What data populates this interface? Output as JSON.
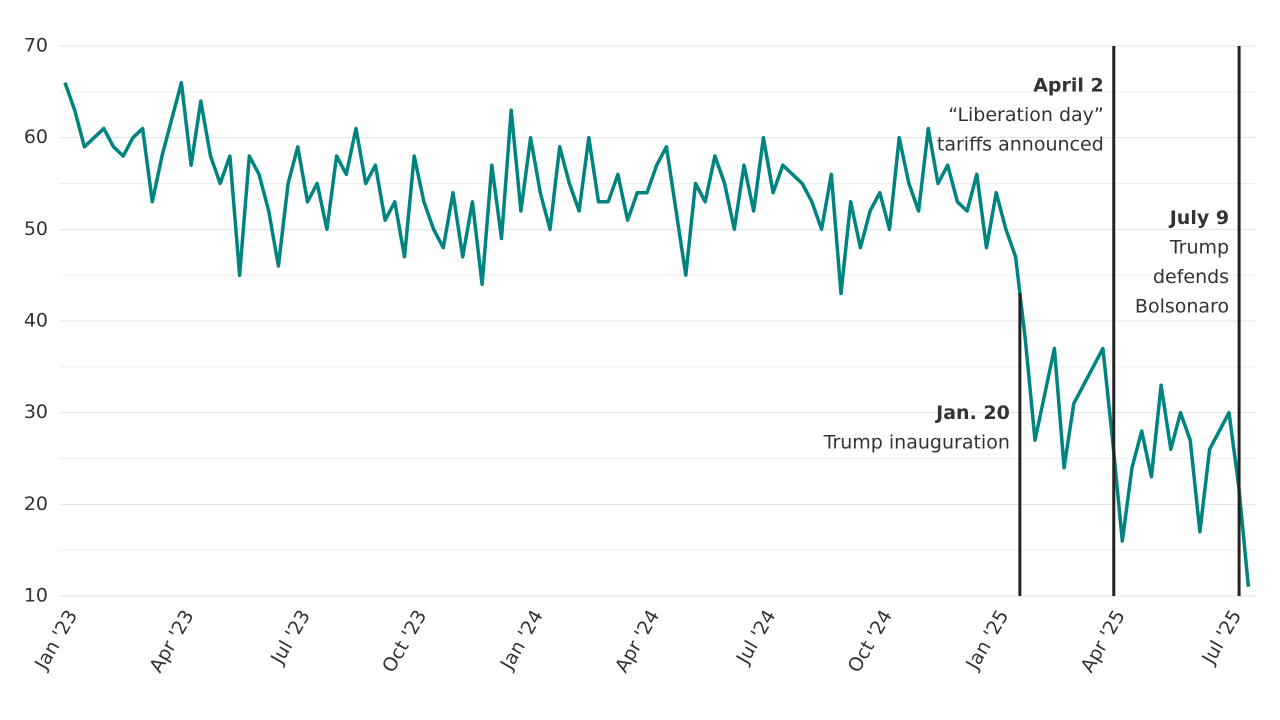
{
  "chart_data": {
    "type": "line",
    "xlim": [
      0,
      30.6
    ],
    "ylim": [
      10,
      70
    ],
    "yticks": [
      10,
      20,
      30,
      40,
      50,
      60,
      70
    ],
    "y_minor_ticks": [
      15,
      25,
      35,
      45,
      55,
      65
    ],
    "grid": true,
    "xticks": [
      {
        "value": 0,
        "label": "Jan '23"
      },
      {
        "value": 3,
        "label": "Apr '23"
      },
      {
        "value": 6,
        "label": "Jul '23"
      },
      {
        "value": 9,
        "label": "Oct '23"
      },
      {
        "value": 12,
        "label": "Jan '24"
      },
      {
        "value": 15,
        "label": "Apr '24"
      },
      {
        "value": 18,
        "label": "Jul '24"
      },
      {
        "value": 21,
        "label": "Oct '24"
      },
      {
        "value": 24,
        "label": "Jan '25"
      },
      {
        "value": 27,
        "label": "Apr '25"
      },
      {
        "value": 30,
        "label": "Jul '25"
      }
    ],
    "series": [
      {
        "color": "#00847f",
        "x": [
          0,
          0.25,
          0.5,
          0.75,
          1,
          1.25,
          1.5,
          1.75,
          2,
          2.25,
          2.5,
          2.75,
          3,
          3.25,
          3.5,
          3.75,
          4,
          4.25,
          4.5,
          4.75,
          5,
          5.25,
          5.5,
          5.75,
          6,
          6.25,
          6.5,
          6.75,
          7,
          7.25,
          7.5,
          7.75,
          8,
          8.25,
          8.5,
          8.75,
          9,
          9.25,
          9.5,
          9.75,
          10,
          10.25,
          10.5,
          10.75,
          11,
          11.25,
          11.5,
          11.75,
          12,
          12.25,
          12.5,
          12.75,
          13,
          13.25,
          13.5,
          13.75,
          14,
          14.25,
          14.5,
          14.75,
          15,
          15.25,
          15.5,
          15.75,
          16,
          16.25,
          16.5,
          16.75,
          17,
          17.25,
          17.5,
          17.75,
          18,
          18.25,
          18.5,
          18.75,
          19,
          19.25,
          19.5,
          19.75,
          20,
          20.25,
          20.5,
          20.75,
          21,
          21.25,
          21.5,
          21.75,
          22,
          22.25,
          22.5,
          22.75,
          23,
          23.25,
          23.5,
          23.75,
          24,
          24.25,
          24.5,
          24.75,
          25,
          25.25,
          25.5,
          25.75,
          26,
          26.25,
          26.5,
          26.75,
          27,
          27.25,
          27.5,
          27.75,
          28,
          28.25,
          28.5,
          28.75,
          29,
          29.25,
          29.5,
          29.75,
          30,
          30.25,
          30.5
        ],
        "values": [
          66,
          63,
          59,
          60,
          61,
          59,
          58,
          60,
          61,
          53,
          58,
          62,
          66,
          57,
          64,
          58,
          55,
          58,
          45,
          58,
          56,
          52,
          46,
          55,
          59,
          53,
          55,
          50,
          58,
          56,
          61,
          55,
          57,
          51,
          53,
          47,
          58,
          53,
          50,
          48,
          54,
          47,
          53,
          44,
          57,
          49,
          63,
          52,
          60,
          54,
          50,
          59,
          55,
          52,
          60,
          53,
          53,
          56,
          51,
          54,
          54,
          57,
          59,
          52,
          45,
          55,
          53,
          58,
          55,
          50,
          57,
          52,
          60,
          54,
          57,
          56,
          55,
          53,
          50,
          56,
          43,
          53,
          48,
          52,
          54,
          50,
          60,
          55,
          52,
          61,
          55,
          57,
          53,
          52,
          56,
          48,
          54,
          50,
          47,
          38,
          27,
          32,
          37,
          24,
          31,
          33,
          35,
          37,
          27,
          16,
          24,
          28,
          23,
          33,
          26,
          30,
          27,
          17,
          26,
          28,
          30,
          22,
          11
        ]
      }
    ],
    "annotations": [
      {
        "x": 24.61,
        "label": "Jan. 20",
        "text": [
          "Trump inauguration"
        ]
      },
      {
        "x": 27.03,
        "label": "April 2",
        "text": [
          "“Liberation day”",
          "tariffs announced"
        ]
      },
      {
        "x": 30.26,
        "label": "July 9",
        "text": [
          "Trump",
          "defends",
          "Bolsonaro"
        ]
      }
    ]
  }
}
